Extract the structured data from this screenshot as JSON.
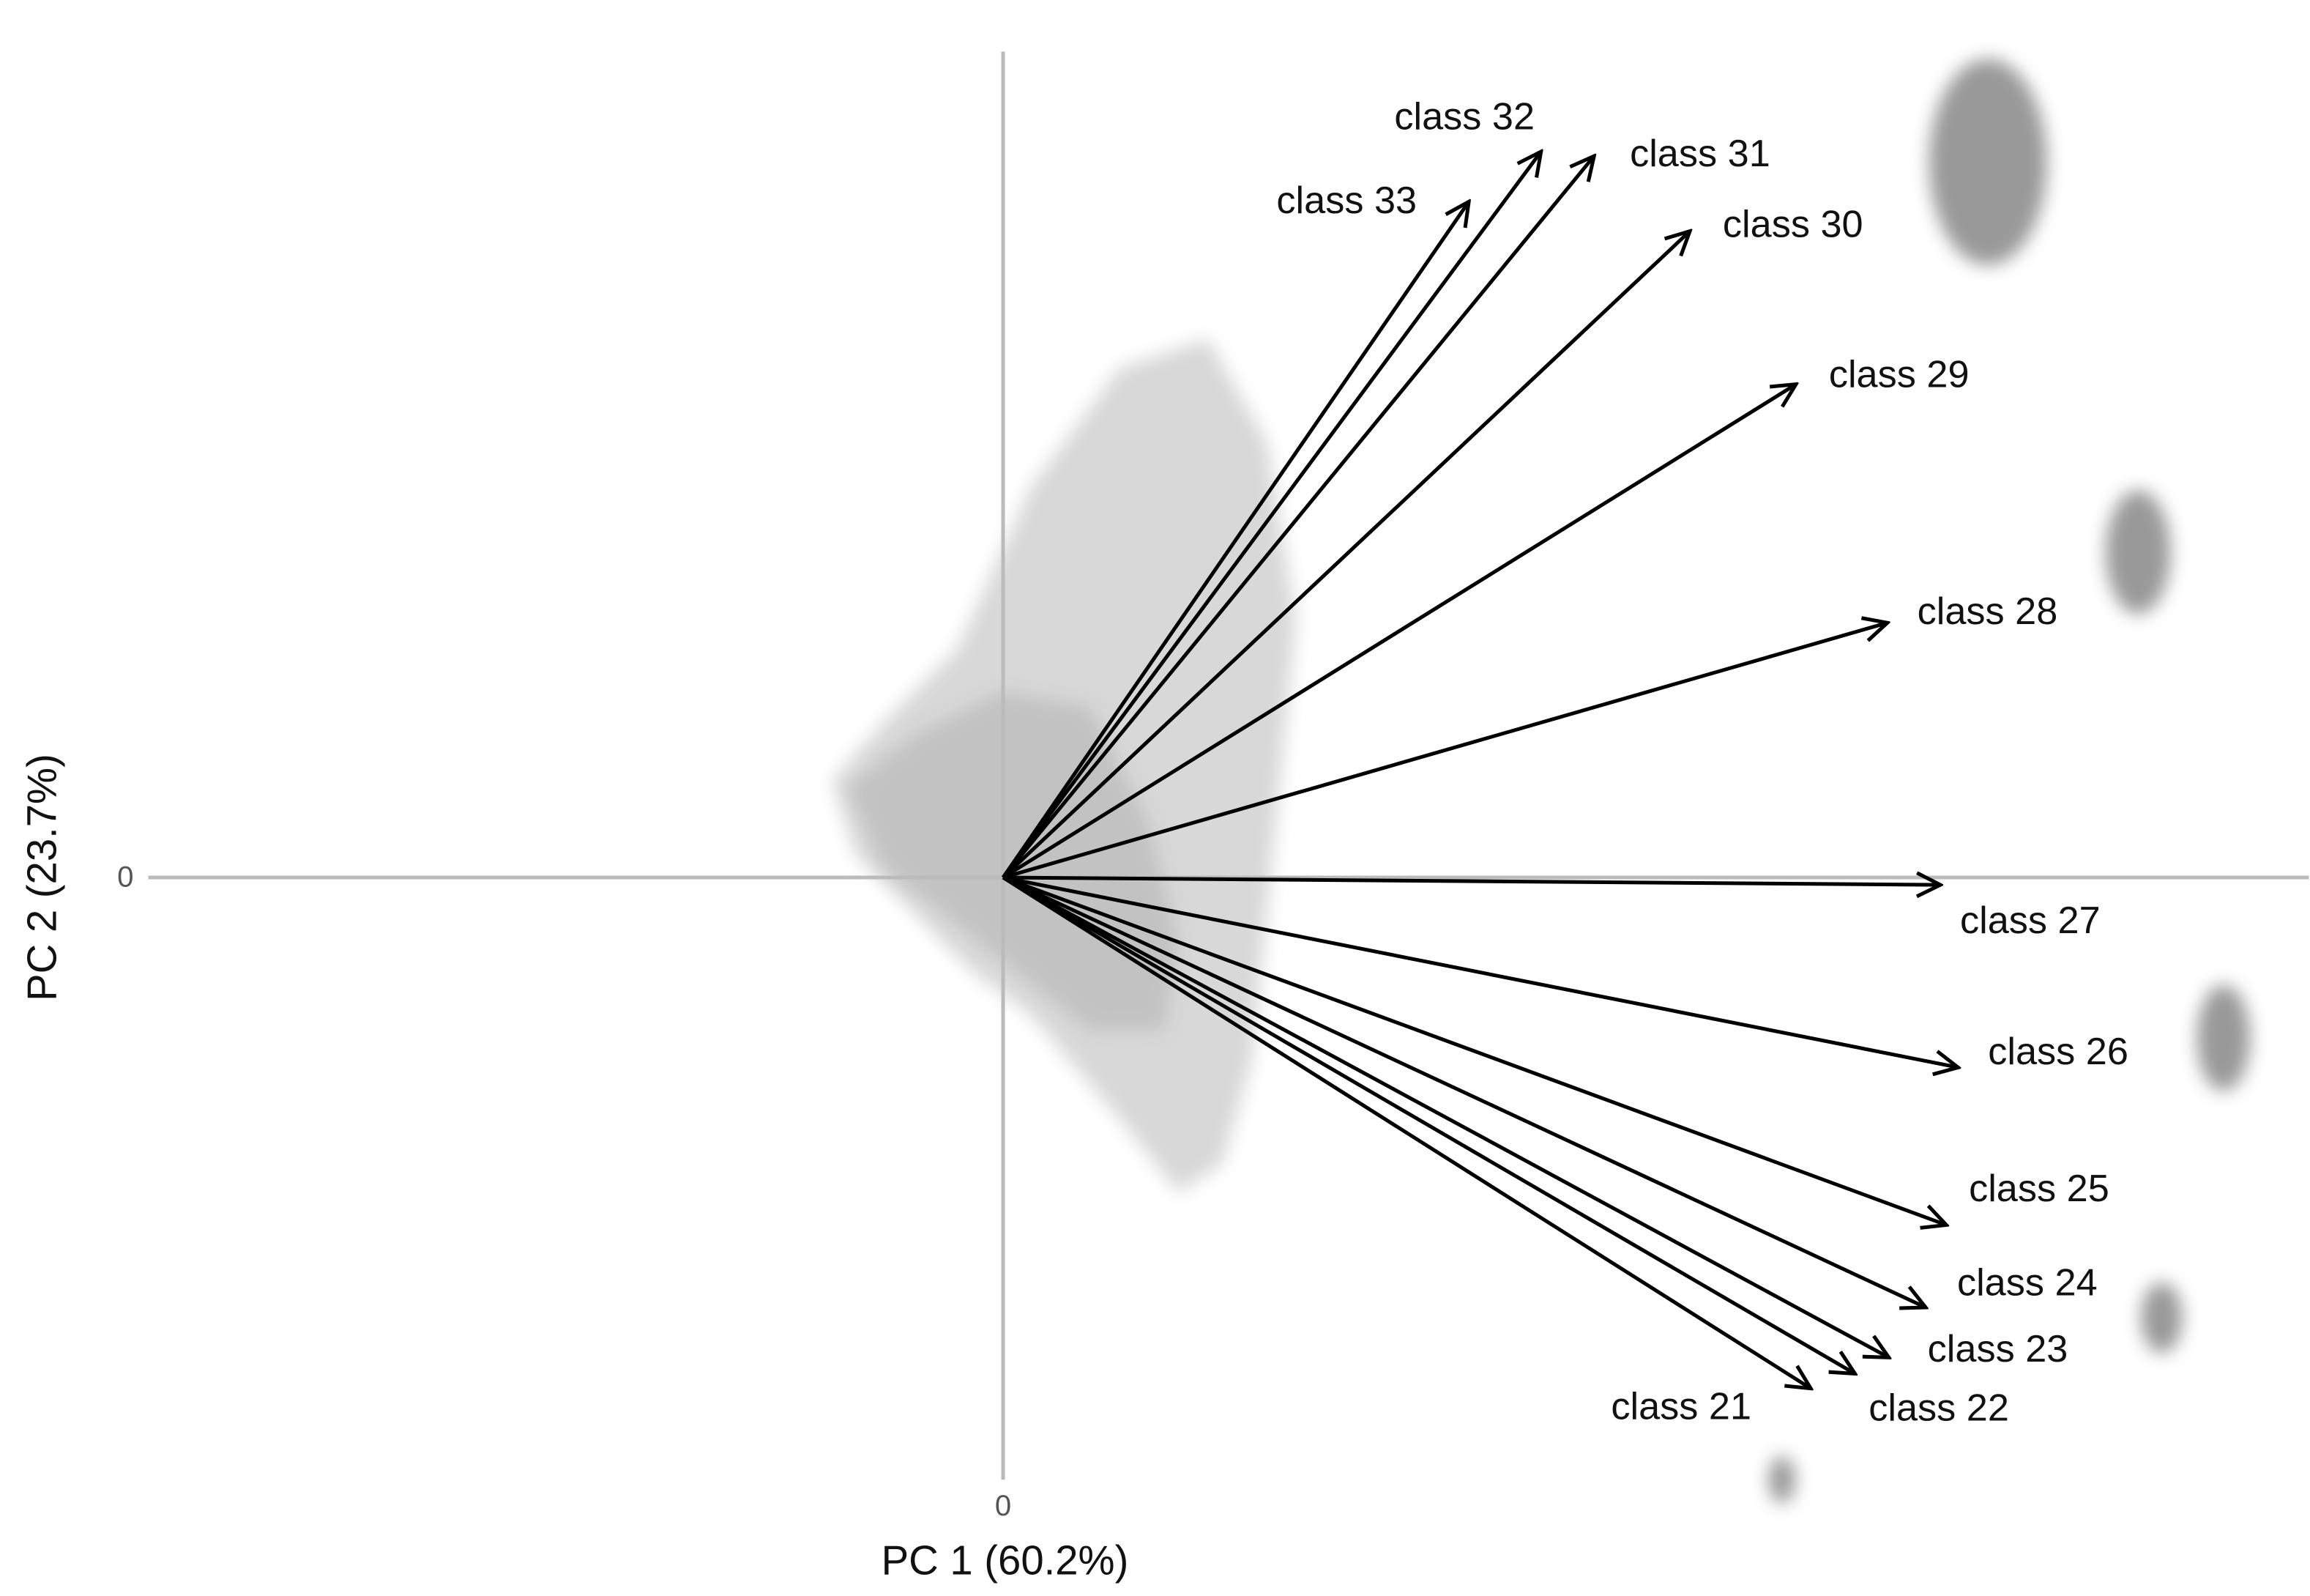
{
  "chart_data": {
    "type": "biplot",
    "x_label": "PC 1 (60.2%)",
    "y_label": "PC 2 (23.7%)",
    "xlim": [
      -5.8,
      8.86
    ],
    "ylim": [
      -4.88,
      5.96
    ],
    "xticks": [
      0
    ],
    "yticks": [
      0
    ],
    "grid": false,
    "color": "#000000",
    "vectors": [
      {
        "name": "class 21",
        "x": 5.48,
        "y": -3.47
      },
      {
        "name": "class 22",
        "x": 5.78,
        "y": -3.37
      },
      {
        "name": "class 23",
        "x": 6.01,
        "y": -3.26
      },
      {
        "name": "class 24",
        "x": 6.26,
        "y": -2.92
      },
      {
        "name": "class 25",
        "x": 6.4,
        "y": -2.36
      },
      {
        "name": "class 26",
        "x": 6.48,
        "y": -1.29
      },
      {
        "name": "class 27",
        "x": 6.36,
        "y": -0.05
      },
      {
        "name": "class 28",
        "x": 6.0,
        "y": 1.73
      },
      {
        "name": "class 29",
        "x": 5.38,
        "y": 3.35
      },
      {
        "name": "class 30",
        "x": 4.66,
        "y": 4.39
      },
      {
        "name": "class 31",
        "x": 4.01,
        "y": 4.9
      },
      {
        "name": "class 32",
        "x": 3.65,
        "y": 4.93
      },
      {
        "name": "class 33",
        "x": 3.16,
        "y": 4.59
      }
    ]
  }
}
